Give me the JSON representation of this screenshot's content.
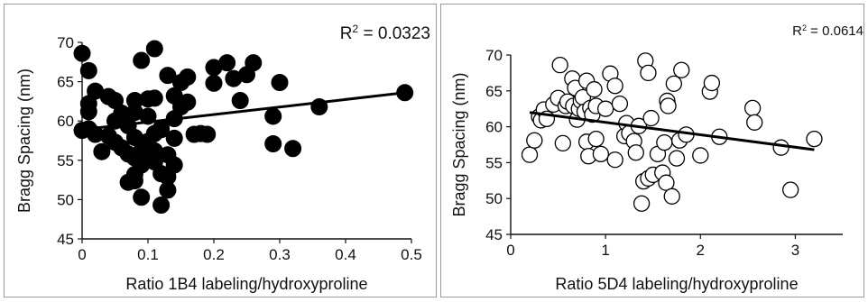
{
  "chart_data": [
    {
      "type": "scatter",
      "marker": "filled-circle",
      "xlabel": "Ratio 1B4 labeling/hydroxyproline",
      "ylabel": "Bragg Spacing (nm)",
      "xlim": [
        0,
        0.5
      ],
      "ylim": [
        45,
        70
      ],
      "xticks": [
        "0",
        "0.1",
        "0.2",
        "0.3",
        "0.4",
        "0.5"
      ],
      "yticks": [
        "45",
        "50",
        "55",
        "60",
        "65",
        "70"
      ],
      "annotation": {
        "base": "R",
        "sup": "2",
        "rest": " = 0.0323"
      },
      "trendline": {
        "x": [
          0,
          0.49
        ],
        "y": [
          58.9,
          63.6
        ]
      },
      "points": [
        [
          0,
          68.6
        ],
        [
          0.01,
          66.4
        ],
        [
          0.02,
          63.8
        ],
        [
          0.01,
          62.2
        ],
        [
          0.01,
          61.2
        ],
        [
          0.01,
          59.0
        ],
        [
          0,
          58.8
        ],
        [
          0.02,
          58.3
        ],
        [
          0.03,
          56.1
        ],
        [
          0.04,
          63.1
        ],
        [
          0.05,
          62.6
        ],
        [
          0.05,
          60.0
        ],
        [
          0.04,
          58.1
        ],
        [
          0.05,
          57.3
        ],
        [
          0.06,
          56.6
        ],
        [
          0.07,
          55.8
        ],
        [
          0.06,
          61.0
        ],
        [
          0.07,
          59.4
        ],
        [
          0.08,
          62.6
        ],
        [
          0.08,
          61.1
        ],
        [
          0.08,
          57.9
        ],
        [
          0.09,
          56.2
        ],
        [
          0.08,
          55.3
        ],
        [
          0.09,
          54.4
        ],
        [
          0.08,
          53.2
        ],
        [
          0.07,
          52.2
        ],
        [
          0.08,
          52.4
        ],
        [
          0.09,
          50.3
        ],
        [
          0.1,
          62.8
        ],
        [
          0.11,
          62.9
        ],
        [
          0.1,
          60.6
        ],
        [
          0.11,
          58.4
        ],
        [
          0.1,
          57.4
        ],
        [
          0.11,
          56.2
        ],
        [
          0.1,
          55.6
        ],
        [
          0.11,
          54.8
        ],
        [
          0.12,
          53.3
        ],
        [
          0.12,
          49.3
        ],
        [
          0.13,
          51.2
        ],
        [
          0.13,
          52.9
        ],
        [
          0.14,
          54.4
        ],
        [
          0.13,
          55.7
        ],
        [
          0.14,
          57.8
        ],
        [
          0.12,
          58.9
        ],
        [
          0.12,
          59.1
        ],
        [
          0.14,
          60.3
        ],
        [
          0.15,
          61.8
        ],
        [
          0.14,
          63.2
        ],
        [
          0.15,
          64.9
        ],
        [
          0.16,
          65.6
        ],
        [
          0.16,
          62.4
        ],
        [
          0.17,
          58.3
        ],
        [
          0.18,
          58.4
        ],
        [
          0.13,
          65.8
        ],
        [
          0.09,
          67.7
        ],
        [
          0.11,
          69.2
        ],
        [
          0.19,
          58.3
        ],
        [
          0.2,
          64.8
        ],
        [
          0.2,
          66.8
        ],
        [
          0.22,
          67.4
        ],
        [
          0.23,
          65.4
        ],
        [
          0.24,
          62.6
        ],
        [
          0.25,
          65.9
        ],
        [
          0.26,
          67.4
        ],
        [
          0.29,
          60.6
        ],
        [
          0.29,
          57.1
        ],
        [
          0.3,
          64.9
        ],
        [
          0.32,
          56.5
        ],
        [
          0.36,
          61.8
        ],
        [
          0.49,
          63.6
        ]
      ]
    },
    {
      "type": "scatter",
      "marker": "open-circle",
      "xlabel": "Ratio 5D4 labeling/hydroxyproline",
      "ylabel": "Bragg Spacing (nm)",
      "xlim": [
        0,
        3.5
      ],
      "ylim": [
        45,
        70
      ],
      "xticks": [
        "0",
        "1",
        "2",
        "3"
      ],
      "yticks": [
        "45",
        "50",
        "55",
        "60",
        "65",
        "70"
      ],
      "annotation": {
        "base": "R",
        "sup": "2",
        "rest": " = 0.0614"
      },
      "trendline": {
        "x": [
          0.2,
          3.2
        ],
        "y": [
          62.0,
          56.8
        ]
      },
      "points": [
        [
          0.2,
          56.1
        ],
        [
          0.25,
          58.1
        ],
        [
          0.3,
          61.4
        ],
        [
          0.32,
          60.9
        ],
        [
          0.35,
          62.4
        ],
        [
          0.38,
          61.1
        ],
        [
          0.45,
          63.1
        ],
        [
          0.5,
          64.0
        ],
        [
          0.52,
          68.6
        ],
        [
          0.55,
          57.7
        ],
        [
          0.58,
          62.9
        ],
        [
          0.6,
          63.5
        ],
        [
          0.65,
          66.7
        ],
        [
          0.66,
          62.9
        ],
        [
          0.68,
          65.4
        ],
        [
          0.7,
          61.0
        ],
        [
          0.72,
          62.5
        ],
        [
          0.74,
          63.6
        ],
        [
          0.76,
          64.1
        ],
        [
          0.78,
          62.1
        ],
        [
          0.8,
          66.4
        ],
        [
          0.8,
          57.9
        ],
        [
          0.82,
          55.9
        ],
        [
          0.84,
          62.6
        ],
        [
          0.86,
          61.7
        ],
        [
          0.88,
          65.2
        ],
        [
          0.9,
          62.9
        ],
        [
          0.9,
          58.3
        ],
        [
          0.95,
          56.2
        ],
        [
          1.0,
          62.5
        ],
        [
          1.05,
          67.4
        ],
        [
          1.1,
          65.7
        ],
        [
          1.1,
          55.4
        ],
        [
          1.15,
          63.2
        ],
        [
          1.2,
          58.7
        ],
        [
          1.22,
          60.5
        ],
        [
          1.25,
          59.1
        ],
        [
          1.3,
          58.0
        ],
        [
          1.32,
          56.4
        ],
        [
          1.35,
          60.1
        ],
        [
          1.38,
          49.3
        ],
        [
          1.4,
          52.4
        ],
        [
          1.42,
          69.2
        ],
        [
          1.45,
          67.5
        ],
        [
          1.45,
          52.8
        ],
        [
          1.48,
          61.2
        ],
        [
          1.5,
          53.3
        ],
        [
          1.55,
          56.2
        ],
        [
          1.6,
          53.6
        ],
        [
          1.62,
          57.8
        ],
        [
          1.64,
          52.2
        ],
        [
          1.65,
          63.6
        ],
        [
          1.66,
          62.9
        ],
        [
          1.7,
          50.3
        ],
        [
          1.72,
          66.0
        ],
        [
          1.75,
          55.6
        ],
        [
          1.78,
          58.1
        ],
        [
          1.8,
          67.9
        ],
        [
          1.85,
          58.9
        ],
        [
          2.0,
          56.0
        ],
        [
          2.1,
          64.9
        ],
        [
          2.12,
          66.1
        ],
        [
          2.2,
          58.6
        ],
        [
          2.55,
          62.6
        ],
        [
          2.57,
          60.6
        ],
        [
          2.85,
          57.1
        ],
        [
          2.95,
          51.2
        ],
        [
          3.2,
          58.3
        ]
      ]
    }
  ]
}
